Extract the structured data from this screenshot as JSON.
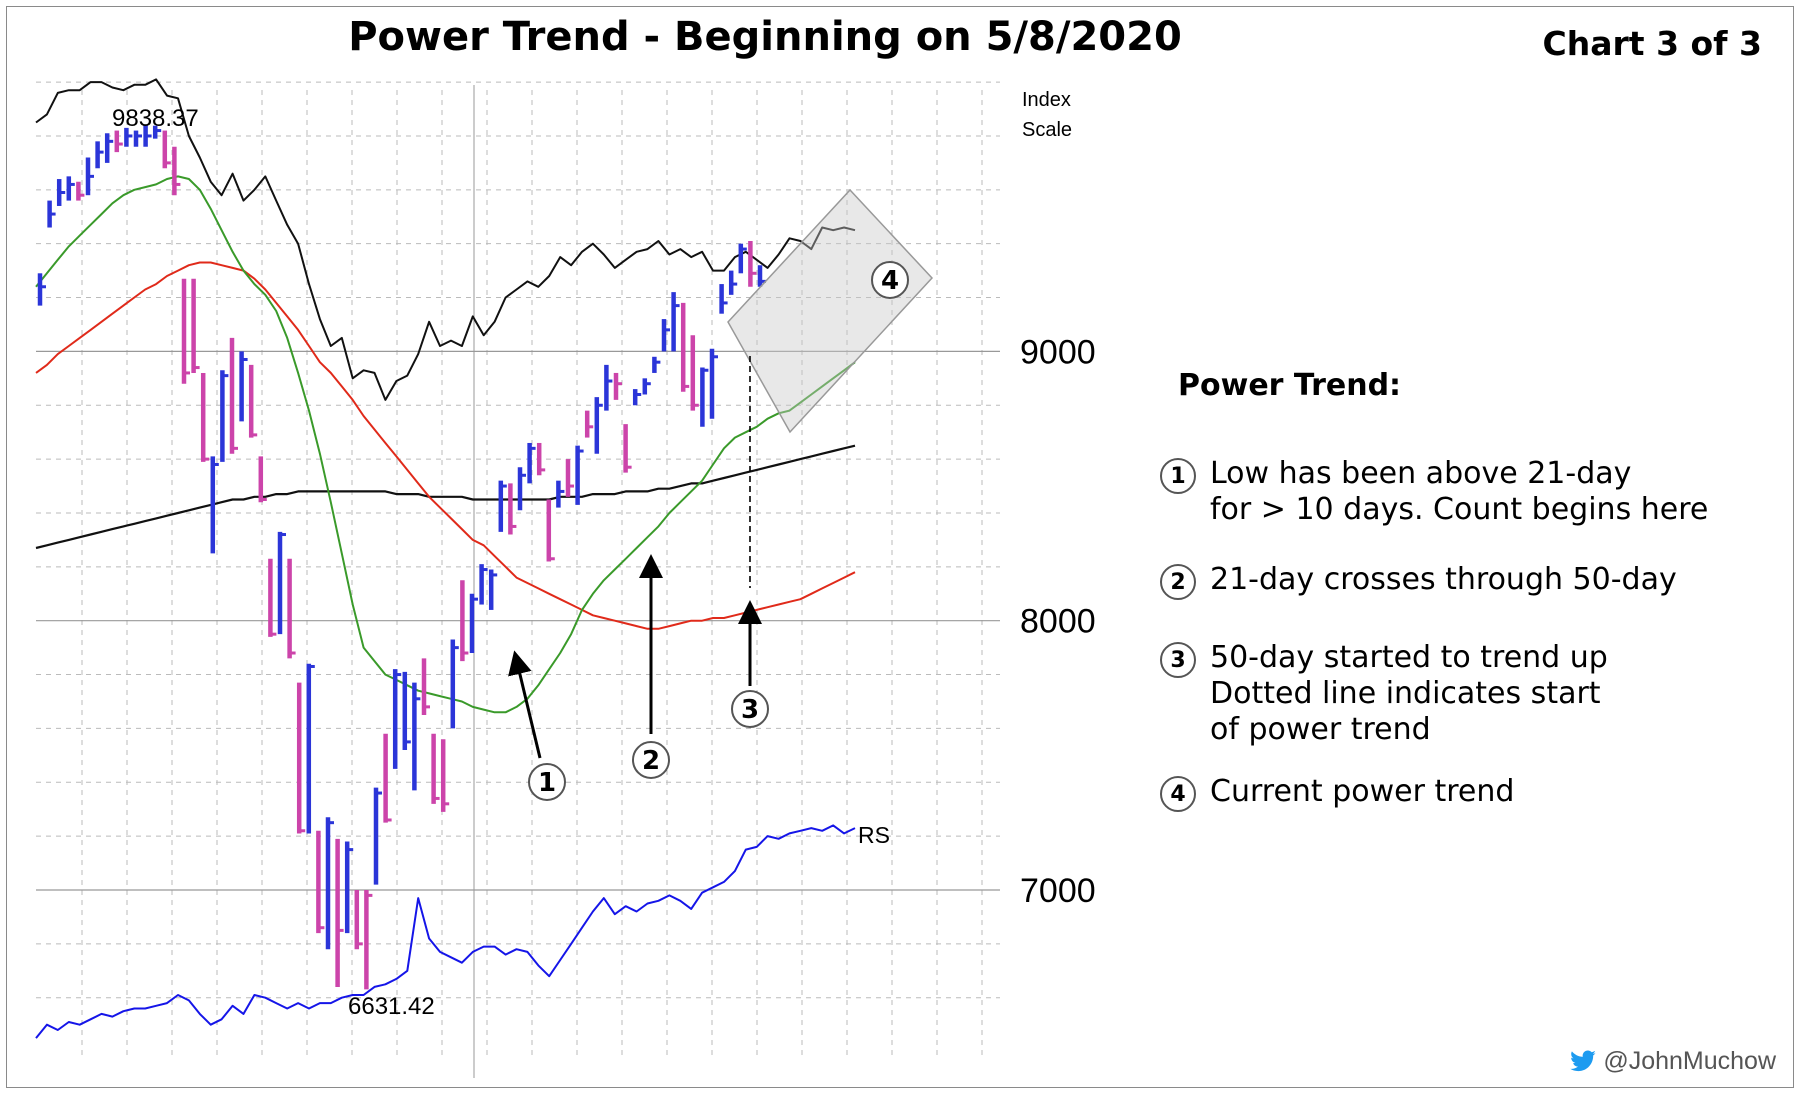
{
  "title": "Power Trend - Beginning on 5/8/2020",
  "subtitle": "Chart 3 of 3",
  "legend": {
    "title": "Power Trend:",
    "items": [
      {
        "num": "1",
        "text": "Low has been above 21-day\nfor > 10 days. Count begins here"
      },
      {
        "num": "2",
        "text": "21-day crosses through 50-day"
      },
      {
        "num": "3",
        "text": "50-day started to trend up\nDotted line indicates start\nof power trend"
      },
      {
        "num": "4",
        "text": "Current power trend"
      }
    ]
  },
  "watermark": {
    "icon": "twitter-bird-icon",
    "text": "@JohnMuchow"
  },
  "chart_data": {
    "type": "ohlc",
    "scale_label": [
      "Index",
      "Scale"
    ],
    "yticks": [
      7000,
      8000,
      9000
    ],
    "ylim": [
      6400,
      10100
    ],
    "grid": true,
    "annotations": {
      "high_label": "9838.37",
      "low_label": "6631.42",
      "rs_label": "RS",
      "markers": [
        "1",
        "2",
        "3",
        "4"
      ]
    },
    "colors": {
      "up": "#2b35d8",
      "down": "#cc44aa",
      "ma21": "#3a9a2a",
      "ma50": "#e02a1a",
      "ma200": "#111111",
      "rs": "#1515e8",
      "price_line": "#111111"
    },
    "bars": [
      {
        "high": 9290,
        "low": 9170,
        "close": 9240,
        "dir": "up"
      },
      {
        "high": 9560,
        "low": 9460,
        "close": 9510,
        "dir": "up"
      },
      {
        "high": 9640,
        "low": 9540,
        "close": 9590,
        "dir": "up"
      },
      {
        "high": 9650,
        "low": 9560,
        "close": 9620,
        "dir": "up"
      },
      {
        "high": 9630,
        "low": 9560,
        "close": 9580,
        "dir": "down"
      },
      {
        "high": 9720,
        "low": 9580,
        "close": 9650,
        "dir": "up"
      },
      {
        "high": 9780,
        "low": 9680,
        "close": 9740,
        "dir": "up"
      },
      {
        "high": 9810,
        "low": 9700,
        "close": 9780,
        "dir": "up"
      },
      {
        "high": 9820,
        "low": 9740,
        "close": 9770,
        "dir": "down"
      },
      {
        "high": 9830,
        "low": 9760,
        "close": 9800,
        "dir": "up"
      },
      {
        "high": 9820,
        "low": 9760,
        "close": 9800,
        "dir": "up"
      },
      {
        "high": 9840,
        "low": 9760,
        "close": 9800,
        "dir": "up"
      },
      {
        "high": 9838,
        "low": 9790,
        "close": 9820,
        "dir": "up"
      },
      {
        "high": 9820,
        "low": 9680,
        "close": 9700,
        "dir": "down"
      },
      {
        "high": 9760,
        "low": 9580,
        "close": 9620,
        "dir": "down"
      },
      {
        "high": 9270,
        "low": 8880,
        "close": 8920,
        "dir": "down"
      },
      {
        "high": 9270,
        "low": 8920,
        "close": 8940,
        "dir": "down"
      },
      {
        "high": 8920,
        "low": 8590,
        "close": 8600,
        "dir": "down"
      },
      {
        "high": 8610,
        "low": 8250,
        "close": 8580,
        "dir": "up"
      },
      {
        "high": 8930,
        "low": 8590,
        "close": 8910,
        "dir": "up"
      },
      {
        "high": 9050,
        "low": 8620,
        "close": 8640,
        "dir": "down"
      },
      {
        "high": 9000,
        "low": 8740,
        "close": 8970,
        "dir": "up"
      },
      {
        "high": 8950,
        "low": 8680,
        "close": 8690,
        "dir": "down"
      },
      {
        "high": 8610,
        "low": 8440,
        "close": 8450,
        "dir": "down"
      },
      {
        "high": 8230,
        "low": 7940,
        "close": 7950,
        "dir": "down"
      },
      {
        "high": 8330,
        "low": 7950,
        "close": 8320,
        "dir": "up"
      },
      {
        "high": 8230,
        "low": 7860,
        "close": 7880,
        "dir": "down"
      },
      {
        "high": 7770,
        "low": 7210,
        "close": 7220,
        "dir": "down"
      },
      {
        "high": 7840,
        "low": 7210,
        "close": 7830,
        "dir": "up"
      },
      {
        "high": 7220,
        "low": 6840,
        "close": 6860,
        "dir": "down"
      },
      {
        "high": 7270,
        "low": 6780,
        "close": 7250,
        "dir": "up"
      },
      {
        "high": 7190,
        "low": 6640,
        "close": 6850,
        "dir": "down"
      },
      {
        "high": 7180,
        "low": 6840,
        "close": 7150,
        "dir": "up"
      },
      {
        "high": 7000,
        "low": 6780,
        "close": 6800,
        "dir": "down"
      },
      {
        "high": 7000,
        "low": 6631,
        "close": 6980,
        "dir": "down"
      },
      {
        "high": 7380,
        "low": 7020,
        "close": 7360,
        "dir": "up"
      },
      {
        "high": 7580,
        "low": 7250,
        "close": 7260,
        "dir": "down"
      },
      {
        "high": 7820,
        "low": 7450,
        "close": 7800,
        "dir": "up"
      },
      {
        "high": 7810,
        "low": 7520,
        "close": 7550,
        "dir": "up"
      },
      {
        "high": 7770,
        "low": 7370,
        "close": 7710,
        "dir": "up"
      },
      {
        "high": 7860,
        "low": 7650,
        "close": 7680,
        "dir": "down"
      },
      {
        "high": 7580,
        "low": 7320,
        "close": 7340,
        "dir": "down"
      },
      {
        "high": 7560,
        "low": 7290,
        "close": 7320,
        "dir": "down"
      },
      {
        "high": 7930,
        "low": 7600,
        "close": 7900,
        "dir": "up"
      },
      {
        "high": 8150,
        "low": 7850,
        "close": 7880,
        "dir": "down"
      },
      {
        "high": 8100,
        "low": 7880,
        "close": 8080,
        "dir": "up"
      },
      {
        "high": 8210,
        "low": 8060,
        "close": 8190,
        "dir": "up"
      },
      {
        "high": 8190,
        "low": 8040,
        "close": 8170,
        "dir": "up"
      },
      {
        "high": 8520,
        "low": 8330,
        "close": 8500,
        "dir": "up"
      },
      {
        "high": 8510,
        "low": 8320,
        "close": 8350,
        "dir": "down"
      },
      {
        "high": 8570,
        "low": 8410,
        "close": 8540,
        "dir": "up"
      },
      {
        "high": 8660,
        "low": 8510,
        "close": 8640,
        "dir": "up"
      },
      {
        "high": 8660,
        "low": 8540,
        "close": 8560,
        "dir": "down"
      },
      {
        "high": 8450,
        "low": 8220,
        "close": 8230,
        "dir": "down"
      },
      {
        "high": 8520,
        "low": 8420,
        "close": 8480,
        "dir": "up"
      },
      {
        "high": 8600,
        "low": 8460,
        "close": 8500,
        "dir": "down"
      },
      {
        "high": 8650,
        "low": 8430,
        "close": 8630,
        "dir": "up"
      },
      {
        "high": 8780,
        "low": 8680,
        "close": 8720,
        "dir": "down"
      },
      {
        "high": 8830,
        "low": 8620,
        "close": 8800,
        "dir": "up"
      },
      {
        "high": 8950,
        "low": 8780,
        "close": 8890,
        "dir": "up"
      },
      {
        "high": 8920,
        "low": 8820,
        "close": 8880,
        "dir": "down"
      },
      {
        "high": 8730,
        "low": 8550,
        "close": 8570,
        "dir": "down"
      },
      {
        "high": 8860,
        "low": 8800,
        "close": 8840,
        "dir": "up"
      },
      {
        "high": 8900,
        "low": 8840,
        "close": 8880,
        "dir": "up"
      },
      {
        "high": 8980,
        "low": 8920,
        "close": 8960,
        "dir": "up"
      },
      {
        "high": 9120,
        "low": 9000,
        "close": 9080,
        "dir": "up"
      },
      {
        "high": 9220,
        "low": 9000,
        "close": 9170,
        "dir": "up"
      },
      {
        "high": 9180,
        "low": 8850,
        "close": 8870,
        "dir": "down"
      },
      {
        "high": 9060,
        "low": 8780,
        "close": 8800,
        "dir": "down"
      },
      {
        "high": 8940,
        "low": 8720,
        "close": 8930,
        "dir": "up"
      },
      {
        "high": 9010,
        "low": 8750,
        "close": 8980,
        "dir": "up"
      },
      {
        "high": 9250,
        "low": 9140,
        "close": 9180,
        "dir": "up"
      },
      {
        "high": 9300,
        "low": 9210,
        "close": 9250,
        "dir": "up"
      },
      {
        "high": 9400,
        "low": 9290,
        "close": 9380,
        "dir": "up"
      },
      {
        "high": 9410,
        "low": 9240,
        "close": 9290,
        "dir": "down"
      },
      {
        "high": 9320,
        "low": 9240,
        "close": 9260,
        "dir": "up"
      }
    ],
    "series": [
      {
        "name": "",
        "kind": "price-line",
        "values": [
          9850,
          9880,
          9960,
          9970,
          9970,
          10000,
          10000,
          9980,
          9970,
          9990,
          9990,
          10010,
          9950,
          9940,
          9800,
          9720,
          9630,
          9580,
          9660,
          9560,
          9600,
          9650,
          9560,
          9470,
          9400,
          9250,
          9120,
          9020,
          9050,
          8900,
          8930,
          8920,
          8820,
          8890,
          8910,
          8990,
          9110,
          9020,
          9040,
          9020,
          9130,
          9060,
          9110,
          9200,
          9230,
          9260,
          9240,
          9280,
          9350,
          9320,
          9370,
          9400,
          9360,
          9310,
          9340,
          9370,
          9380,
          9410,
          9360,
          9380,
          9350,
          9370,
          9300,
          9300,
          9350,
          9370,
          9340,
          9310,
          9360,
          9420,
          9410,
          9380,
          9460,
          9450,
          9460,
          9450
        ]
      },
      {
        "name": "",
        "kind": "ma21",
        "values": [
          9240,
          9290,
          9340,
          9390,
          9430,
          9470,
          9510,
          9550,
          9580,
          9600,
          9610,
          9620,
          9640,
          9650,
          9640,
          9600,
          9530,
          9450,
          9370,
          9300,
          9250,
          9210,
          9150,
          9050,
          8920,
          8780,
          8620,
          8440,
          8250,
          8060,
          7900,
          7850,
          7800,
          7780,
          7760,
          7740,
          7730,
          7720,
          7710,
          7700,
          7680,
          7670,
          7660,
          7660,
          7680,
          7710,
          7760,
          7820,
          7880,
          7950,
          8040,
          8100,
          8150,
          8190,
          8230,
          8270,
          8310,
          8350,
          8400,
          8440,
          8480,
          8520,
          8580,
          8640,
          8680,
          8700,
          8720,
          8750,
          8770,
          8780,
          8810,
          8840,
          8870,
          8900,
          8930,
          8960
        ]
      },
      {
        "name": "",
        "kind": "ma50",
        "values": [
          8920,
          8950,
          8990,
          9020,
          9050,
          9080,
          9110,
          9140,
          9170,
          9200,
          9230,
          9250,
          9280,
          9300,
          9320,
          9330,
          9330,
          9320,
          9310,
          9300,
          9270,
          9230,
          9180,
          9130,
          9080,
          9020,
          8960,
          8920,
          8870,
          8820,
          8760,
          8710,
          8660,
          8610,
          8560,
          8510,
          8460,
          8420,
          8380,
          8340,
          8300,
          8280,
          8240,
          8200,
          8160,
          8140,
          8120,
          8100,
          8080,
          8060,
          8040,
          8020,
          8010,
          8000,
          7990,
          7980,
          7970,
          7970,
          7980,
          7990,
          8000,
          8000,
          8010,
          8010,
          8020,
          8030,
          8040,
          8050,
          8060,
          8070,
          8080,
          8100,
          8120,
          8140,
          8160,
          8180
        ]
      },
      {
        "name": "",
        "kind": "ma200",
        "values": [
          8270,
          8280,
          8290,
          8300,
          8310,
          8320,
          8330,
          8340,
          8350,
          8360,
          8370,
          8380,
          8390,
          8400,
          8410,
          8420,
          8430,
          8440,
          8450,
          8450,
          8460,
          8460,
          8470,
          8470,
          8480,
          8480,
          8480,
          8480,
          8480,
          8480,
          8480,
          8480,
          8480,
          8470,
          8470,
          8470,
          8460,
          8460,
          8460,
          8460,
          8450,
          8450,
          8450,
          8450,
          8450,
          8450,
          8450,
          8450,
          8460,
          8460,
          8460,
          8470,
          8470,
          8470,
          8480,
          8480,
          8480,
          8490,
          8490,
          8500,
          8510,
          8510,
          8520,
          8530,
          8540,
          8550,
          8560,
          8570,
          8580,
          8590,
          8600,
          8610,
          8620,
          8630,
          8640,
          8650
        ]
      },
      {
        "name": "RS",
        "kind": "rs",
        "values": [
          6450,
          6500,
          6480,
          6510,
          6500,
          6520,
          6540,
          6530,
          6550,
          6560,
          6560,
          6570,
          6580,
          6610,
          6590,
          6540,
          6500,
          6520,
          6570,
          6540,
          6610,
          6600,
          6580,
          6560,
          6580,
          6560,
          6580,
          6580,
          6600,
          6610,
          6610,
          6640,
          6650,
          6670,
          6700,
          6970,
          6820,
          6770,
          6750,
          6730,
          6770,
          6790,
          6790,
          6760,
          6780,
          6770,
          6720,
          6680,
          6740,
          6800,
          6860,
          6920,
          6970,
          6910,
          6940,
          6920,
          6950,
          6960,
          6980,
          6960,
          6930,
          6990,
          7010,
          7030,
          7070,
          7150,
          7160,
          7200,
          7190,
          7210,
          7220,
          7230,
          7220,
          7240,
          7210,
          7230
        ]
      }
    ]
  }
}
